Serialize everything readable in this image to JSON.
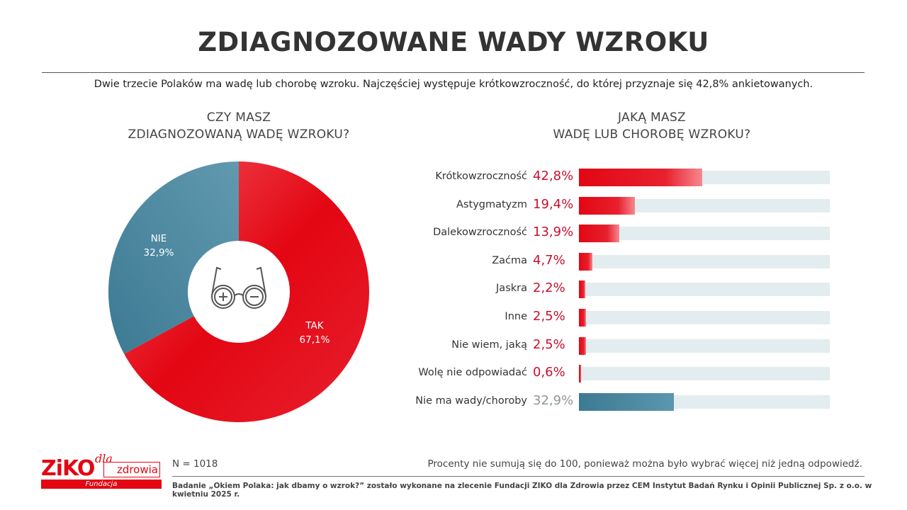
{
  "title": "ZDIAGNOZOWANE WADY WZROKU",
  "subtitle": "Dwie trzecie Polaków ma wadę lub chorobę wzroku. Najczęściej występuje krótkowzroczność, do której przyznaje się 42,8% ankietowanych.",
  "colors": {
    "red": "#e30613",
    "blue": "#4a87a1",
    "track": "#e3ecee",
    "gray_text": "#8f969a"
  },
  "chart_data": [
    {
      "type": "pie",
      "variant": "donut",
      "title_lines": [
        "CZY MASZ",
        "ZDIAGNOZOWANĄ WADĘ WZROKU?"
      ],
      "center_icon": "glasses-plus-minus-icon",
      "slices": [
        {
          "label": "TAK",
          "value": 67.1,
          "value_label": "67,1%",
          "color": "#e30613"
        },
        {
          "label": "NIE",
          "value": 32.9,
          "value_label": "32,9%",
          "color": "#4a87a1"
        }
      ]
    },
    {
      "type": "bar",
      "orientation": "horizontal",
      "title_lines": [
        "JAKĄ MASZ",
        "WADĘ LUB CHOROBĘ WZROKU?"
      ],
      "categories": [
        "Krótkowzroczność",
        "Astygmatyzm",
        "Dalekowzroczność",
        "Zaćma",
        "Jaskra",
        "Inne",
        "Nie wiem, jaką",
        "Wolę nie odpowiadać",
        "Nie ma wady/choroby"
      ],
      "values": [
        42.8,
        19.4,
        13.9,
        4.7,
        2.2,
        2.5,
        2.5,
        0.6,
        32.9
      ],
      "value_labels": [
        "42,8%",
        "19,4%",
        "13,9%",
        "4,7%",
        "2,2%",
        "2,5%",
        "2,5%",
        "0,6%",
        "32,9%"
      ],
      "highlight": [
        true,
        true,
        true,
        true,
        true,
        true,
        true,
        true,
        false
      ],
      "xlim": [
        0,
        100
      ]
    }
  ],
  "footer": {
    "n": "N = 1018",
    "note": "Procenty nie sumują się do 100, ponieważ można było wybrać więcej niż jedną odpowiedź.",
    "source": "Badanie „Okiem Polaka: jak dbamy o wzrok?” zostało wykonane na zlecenie Fundacji ZIKO dla Zdrowia przez CEM Instytut Badań Rynku i Opinii Publicznej Sp. z o.o. w kwietniu 2025 r.",
    "logo": {
      "brand": "ZIKO",
      "dla": "dla",
      "zdrowia": "zdrowia",
      "fundacja": "Fundacja"
    }
  }
}
